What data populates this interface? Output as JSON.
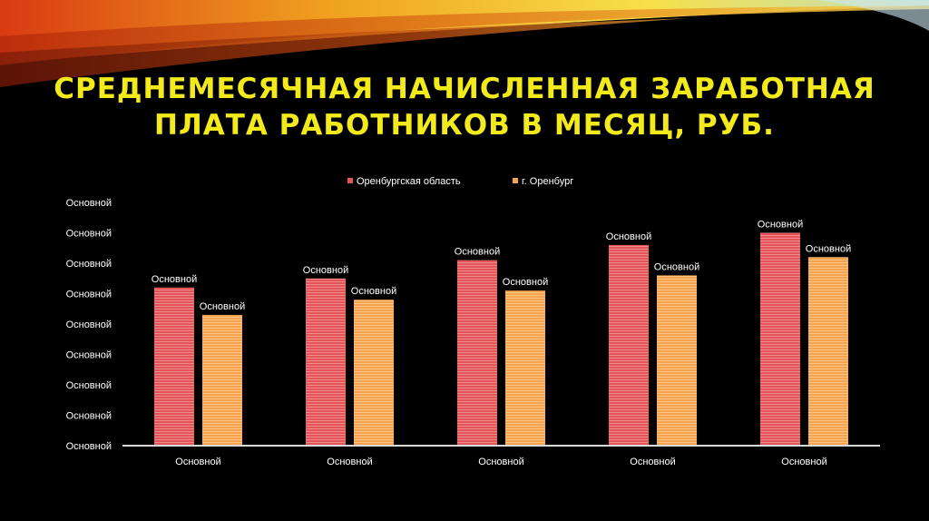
{
  "title": {
    "line1": "СРЕДНЕМЕСЯЧНАЯ НАЧИСЛЕННАЯ ЗАРАБОТНАЯ",
    "line2": "ПЛАТА РАБОТНИКОВ В МЕСЯЦ, РУБ."
  },
  "colors": {
    "title": "#f2ea1a",
    "series1": "#e4555a",
    "series2": "#f5a34e",
    "text": "#ffffff"
  },
  "chart_data": {
    "type": "bar",
    "title": "",
    "categories": [
      "Основной",
      "Основной",
      "Основной",
      "Основной",
      "Основной"
    ],
    "y_tick_labels": [
      "Основной",
      "Основной",
      "Основной",
      "Основной",
      "Основной",
      "Основной",
      "Основной",
      "Основной",
      "Основной"
    ],
    "ylim": [
      0,
      8
    ],
    "grid": false,
    "legend_position": "top",
    "series": [
      {
        "name": "Оренбургская область",
        "values": [
          5.2,
          5.5,
          6.1,
          6.6,
          7.0
        ],
        "labels": [
          "Основной",
          "Основной",
          "Основной",
          "Основной",
          "Основной"
        ]
      },
      {
        "name": "г. Оренбург",
        "values": [
          4.3,
          4.8,
          5.1,
          5.6,
          6.2
        ],
        "labels": [
          "Основной",
          "Основной",
          "Основной",
          "Основной",
          "Основной"
        ]
      }
    ]
  }
}
